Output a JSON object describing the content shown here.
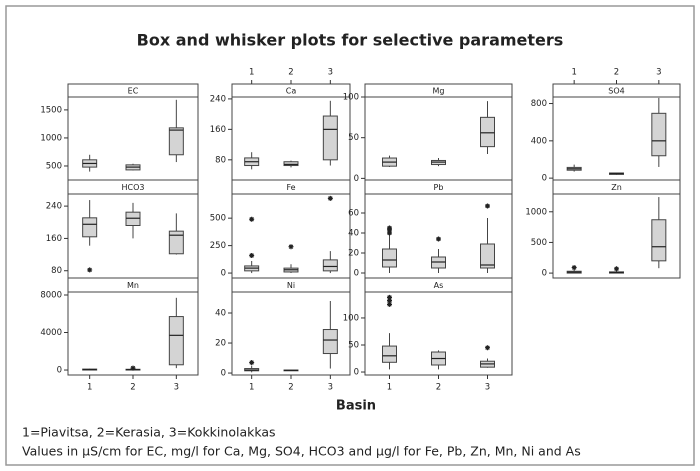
{
  "figure": {
    "title": "Box and whisker plots for selective parameters",
    "xlabel": "Basin",
    "categories": [
      "1",
      "2",
      "3"
    ],
    "notes": [
      "1=Piavitsa, 2=Kerasia, 3=Kokkinolakkas",
      "Values in µS/cm for EC, mg/l for Ca, Mg, SO4, HCO3 and µg/l for Fe, Pb, Zn, Mn, Ni and As"
    ]
  },
  "chart_data": [
    {
      "type": "box",
      "title": "EC",
      "color": "#d4d4d4",
      "ylim": [
        250,
        1730
      ],
      "yticks": [
        500,
        1000,
        1500
      ],
      "boxes": [
        {
          "min": 400,
          "q1": 480,
          "median": 545,
          "q3": 610,
          "max": 700,
          "outliers": []
        },
        {
          "min": 420,
          "q1": 430,
          "median": 480,
          "q3": 520,
          "max": 540,
          "outliers": []
        },
        {
          "min": 570,
          "q1": 700,
          "median": 1140,
          "q3": 1180,
          "max": 1680,
          "outliers": []
        }
      ]
    },
    {
      "type": "box",
      "title": "Ca",
      "color": "#d4d4d4",
      "ylim": [
        27,
        245
      ],
      "yticks": [
        80,
        160,
        240
      ],
      "boxes": [
        {
          "min": 55,
          "q1": 65,
          "median": 75,
          "q3": 85,
          "max": 100,
          "outliers": []
        },
        {
          "min": 60,
          "q1": 65,
          "median": 68,
          "q3": 75,
          "max": 78,
          "outliers": []
        },
        {
          "min": 65,
          "q1": 80,
          "median": 160,
          "q3": 195,
          "max": 235,
          "outliers": []
        }
      ]
    },
    {
      "type": "box",
      "title": "Mg",
      "color": "#d4d4d4",
      "ylim": [
        -2,
        100
      ],
      "yticks": [
        0,
        50,
        100
      ],
      "boxes": [
        {
          "min": 14,
          "q1": 15,
          "median": 20,
          "q3": 25,
          "max": 28,
          "outliers": []
        },
        {
          "min": 15,
          "q1": 17,
          "median": 20,
          "q3": 22,
          "max": 25,
          "outliers": []
        },
        {
          "min": 30,
          "q1": 39,
          "median": 56,
          "q3": 75,
          "max": 95,
          "outliers": []
        }
      ]
    },
    {
      "type": "box",
      "title": "SO4",
      "color": "#d4d4d4",
      "ylim": [
        -20,
        870
      ],
      "yticks": [
        0,
        400,
        800
      ],
      "boxes": [
        {
          "min": 70,
          "q1": 85,
          "median": 100,
          "q3": 115,
          "max": 145,
          "outliers": []
        },
        {
          "min": 35,
          "q1": 40,
          "median": 50,
          "q3": 55,
          "max": 60,
          "outliers": []
        },
        {
          "min": 120,
          "q1": 240,
          "median": 400,
          "q3": 695,
          "max": 860,
          "outliers": []
        }
      ]
    },
    {
      "type": "box",
      "title": "HCO3",
      "color": "#d4d4d4",
      "ylim": [
        62,
        270
      ],
      "yticks": [
        80,
        160,
        240
      ],
      "boxes": [
        {
          "min": 142,
          "q1": 164,
          "median": 195,
          "q3": 211,
          "max": 255,
          "outliers": [
            82
          ]
        },
        {
          "min": 160,
          "q1": 192,
          "median": 210,
          "q3": 225,
          "max": 248,
          "outliers": []
        },
        {
          "min": 120,
          "q1": 122,
          "median": 168,
          "q3": 178,
          "max": 222,
          "outliers": []
        }
      ]
    },
    {
      "type": "box",
      "title": "Fe",
      "color": "#d4d4d4",
      "ylim": [
        -45,
        720
      ],
      "yticks": [
        0,
        250,
        500
      ],
      "boxes": [
        {
          "min": 0,
          "q1": 20,
          "median": 45,
          "q3": 65,
          "max": 110,
          "outliers": [
            490,
            160
          ]
        },
        {
          "min": 0,
          "q1": 10,
          "median": 30,
          "q3": 45,
          "max": 80,
          "outliers": [
            240
          ]
        },
        {
          "min": 0,
          "q1": 20,
          "median": 60,
          "q3": 120,
          "max": 200,
          "outliers": [
            680
          ]
        }
      ]
    },
    {
      "type": "box",
      "title": "Pb",
      "color": "#d4d4d4",
      "ylim": [
        -5,
        79
      ],
      "yticks": [
        0,
        20,
        40,
        60
      ],
      "boxes": [
        {
          "min": 0,
          "q1": 6,
          "median": 13,
          "q3": 24,
          "max": 38,
          "outliers": [
            40,
            43,
            45
          ]
        },
        {
          "min": 0,
          "q1": 5,
          "median": 11,
          "q3": 16,
          "max": 24,
          "outliers": [
            34
          ]
        },
        {
          "min": 0,
          "q1": 5,
          "median": 8,
          "q3": 29,
          "max": 55,
          "outliers": [
            67
          ]
        }
      ]
    },
    {
      "type": "box",
      "title": "Zn",
      "color": "#d4d4d4",
      "ylim": [
        -80,
        1290
      ],
      "yticks": [
        0,
        500,
        1000
      ],
      "boxes": [
        {
          "min": 0,
          "q1": 0,
          "median": 15,
          "q3": 30,
          "max": 60,
          "outliers": [
            90
          ]
        },
        {
          "min": 0,
          "q1": 0,
          "median": 10,
          "q3": 20,
          "max": 40,
          "outliers": [
            70
          ]
        },
        {
          "min": 80,
          "q1": 200,
          "median": 430,
          "q3": 870,
          "max": 1240,
          "outliers": []
        }
      ]
    },
    {
      "type": "box",
      "title": "Mn",
      "color": "#d4d4d4",
      "ylim": [
        -530,
        8320
      ],
      "yticks": [
        0,
        4000,
        8000
      ],
      "boxes": [
        {
          "min": 0,
          "q1": 0,
          "median": 50,
          "q3": 100,
          "max": 150,
          "outliers": []
        },
        {
          "min": 0,
          "q1": 0,
          "median": 40,
          "q3": 80,
          "max": 120,
          "outliers": [
            200
          ]
        },
        {
          "min": 200,
          "q1": 560,
          "median": 3700,
          "q3": 5700,
          "max": 7700,
          "outliers": []
        }
      ]
    },
    {
      "type": "box",
      "title": "Ni",
      "color": "#d4d4d4",
      "ylim": [
        -1.3,
        54
      ],
      "yticks": [
        0,
        20,
        40
      ],
      "boxes": [
        {
          "min": 0.5,
          "q1": 1.5,
          "median": 2,
          "q3": 3,
          "max": 5,
          "outliers": [
            7
          ]
        },
        {
          "min": 1.5,
          "q1": 1.5,
          "median": 1.8,
          "q3": 2,
          "max": 2.2,
          "outliers": []
        },
        {
          "min": 3,
          "q1": 13,
          "median": 22,
          "q3": 29,
          "max": 48,
          "outliers": []
        }
      ]
    },
    {
      "type": "box",
      "title": "As",
      "color": "#d4d4d4",
      "ylim": [
        -5.5,
        148
      ],
      "yticks": [
        0,
        50,
        100
      ],
      "boxes": [
        {
          "min": 5,
          "q1": 18,
          "median": 30,
          "q3": 48,
          "max": 72,
          "outliers": [
            125,
            132,
            138
          ]
        },
        {
          "min": 5,
          "q1": 13,
          "median": 25,
          "q3": 37,
          "max": 40,
          "outliers": []
        },
        {
          "min": 8,
          "q1": 9,
          "median": 15,
          "q3": 20,
          "max": 25,
          "outliers": [
            45
          ]
        }
      ]
    }
  ]
}
